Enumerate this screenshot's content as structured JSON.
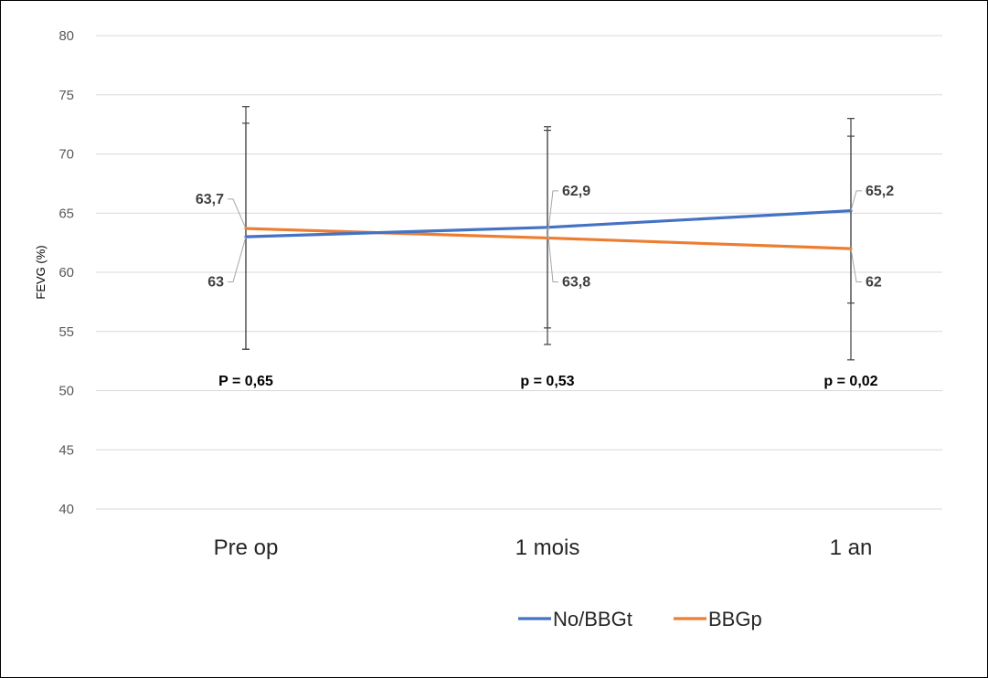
{
  "chart_data": {
    "type": "line",
    "categories": [
      "Pre op",
      "1 mois",
      "1 an"
    ],
    "ylabel": "FEVG (%)",
    "ylim": [
      40,
      80
    ],
    "yticks": [
      40,
      45,
      50,
      55,
      60,
      65,
      70,
      75,
      80
    ],
    "grid": true,
    "legend_position": "bottom",
    "series": [
      {
        "name": "No/BBGt",
        "color": "#4472C4",
        "values": [
          63,
          63.8,
          65.2
        ],
        "labels": [
          "63",
          "63,8",
          "65,2"
        ],
        "error_low": [
          53.5,
          55.3,
          57.4
        ],
        "error_high": [
          72.6,
          72.0,
          73.0
        ]
      },
      {
        "name": "BBGp",
        "color": "#ED7D31",
        "values": [
          63.7,
          62.9,
          62
        ],
        "labels": [
          "63,7",
          "62,9",
          "62"
        ],
        "error_low": [
          53.5,
          53.9,
          52.6
        ],
        "error_high": [
          74.0,
          72.3,
          71.5
        ]
      }
    ],
    "annotations": [
      "P = 0,65",
      "p = 0,53",
      "p = 0,02"
    ],
    "annotation_y": 50.9
  }
}
